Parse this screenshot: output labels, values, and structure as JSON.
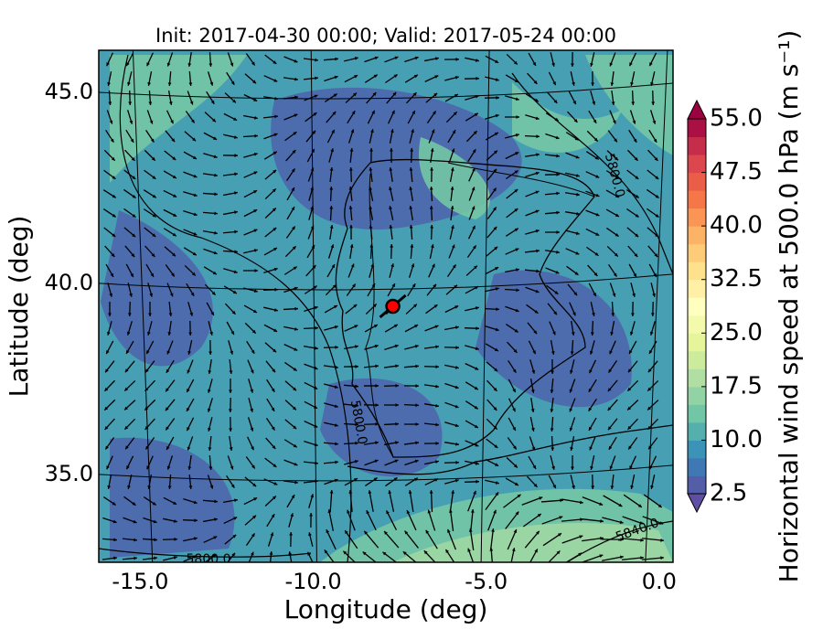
{
  "chart_data": {
    "type": "map",
    "title": "Init: 2017-04-30 00:00; Valid: 2017-05-24 00:00",
    "x_label": "Longitude (deg)",
    "y_label": "Latitude (deg)",
    "xlim": [
      -16.2,
      0.4
    ],
    "ylim": [
      32.7,
      46.1
    ],
    "xticks": [
      {
        "value": -15,
        "label": "-15.0"
      },
      {
        "value": -10,
        "label": "-10.0"
      },
      {
        "value": -5,
        "label": "-5.0"
      },
      {
        "value": 0,
        "label": "0.0"
      }
    ],
    "yticks": [
      {
        "value": 35,
        "label": "35.0"
      },
      {
        "value": 40,
        "label": "40.0"
      },
      {
        "value": 45,
        "label": "45.0"
      }
    ],
    "colorbar_label": "Horizontal wind speed at 500.0 hPa (m s⁻¹)",
    "clim": [
      2.5,
      55
    ],
    "cticks": [
      2.5,
      {
        "value": 10,
        "label": "10.0"
      },
      17.5,
      {
        "value": 25,
        "label": "25.0"
      },
      32.5,
      {
        "value": 40,
        "label": "40.0"
      },
      47.5,
      {
        "value": 55,
        "label": "55.0"
      }
    ],
    "colormap": [
      "#5e4fa2",
      "#3288bd",
      "#66c2a5",
      "#abdda4",
      "#e6f598",
      "#ffffbf",
      "#fee08b",
      "#fdae61",
      "#f46d43",
      "#d53e4f",
      "#9e0142"
    ],
    "contour_labels": [
      "5800.0",
      "5800.0",
      "5800.0",
      "5840.0"
    ],
    "marker": {
      "lon": -7.7,
      "lat": 39.4,
      "color": "#ff0000"
    }
  }
}
